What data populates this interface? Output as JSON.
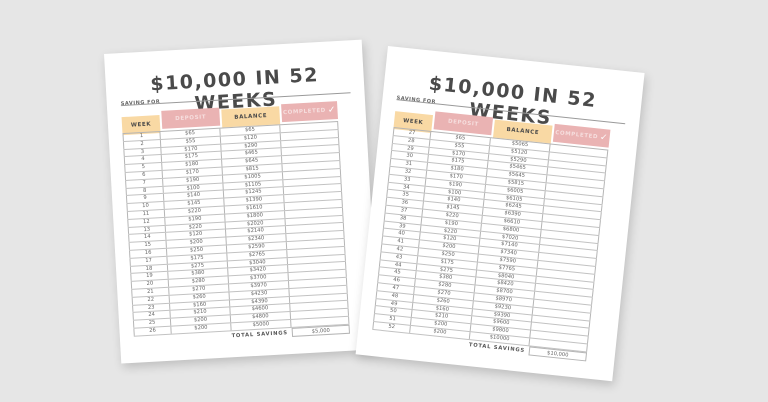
{
  "background_color": "#e6e6e6",
  "colors": {
    "peach": "#f9d9a4",
    "pink": "#eab3b3",
    "text": "#4a4a4a"
  },
  "pages": [
    {
      "title": "$10,000 IN 52 WEEKS",
      "saving_for_label": "SAVING FOR",
      "headers": {
        "week": "WEEK",
        "deposit": "DEPOSIT",
        "balance": "BALANCE",
        "completed": "COMPLETED",
        "check_icon": "✓"
      },
      "rows": [
        {
          "week": "1",
          "deposit": "$65",
          "balance": "$65"
        },
        {
          "week": "2",
          "deposit": "$55",
          "balance": "$120"
        },
        {
          "week": "3",
          "deposit": "$170",
          "balance": "$290"
        },
        {
          "week": "4",
          "deposit": "$175",
          "balance": "$465"
        },
        {
          "week": "5",
          "deposit": "$180",
          "balance": "$645"
        },
        {
          "week": "6",
          "deposit": "$170",
          "balance": "$815"
        },
        {
          "week": "7",
          "deposit": "$190",
          "balance": "$1005"
        },
        {
          "week": "8",
          "deposit": "$100",
          "balance": "$1105"
        },
        {
          "week": "9",
          "deposit": "$140",
          "balance": "$1245"
        },
        {
          "week": "10",
          "deposit": "$145",
          "balance": "$1390"
        },
        {
          "week": "11",
          "deposit": "$220",
          "balance": "$1610"
        },
        {
          "week": "12",
          "deposit": "$190",
          "balance": "$1800"
        },
        {
          "week": "13",
          "deposit": "$220",
          "balance": "$2020"
        },
        {
          "week": "14",
          "deposit": "$120",
          "balance": "$2140"
        },
        {
          "week": "15",
          "deposit": "$200",
          "balance": "$2340"
        },
        {
          "week": "16",
          "deposit": "$250",
          "balance": "$2590"
        },
        {
          "week": "17",
          "deposit": "$175",
          "balance": "$2765"
        },
        {
          "week": "18",
          "deposit": "$275",
          "balance": "$3040"
        },
        {
          "week": "19",
          "deposit": "$380",
          "balance": "$3420"
        },
        {
          "week": "20",
          "deposit": "$280",
          "balance": "$3700"
        },
        {
          "week": "21",
          "deposit": "$270",
          "balance": "$3970"
        },
        {
          "week": "22",
          "deposit": "$260",
          "balance": "$4230"
        },
        {
          "week": "23",
          "deposit": "$160",
          "balance": "$4390"
        },
        {
          "week": "24",
          "deposit": "$210",
          "balance": "$4600"
        },
        {
          "week": "25",
          "deposit": "$200",
          "balance": "$4800"
        },
        {
          "week": "26",
          "deposit": "$200",
          "balance": "$5000"
        }
      ],
      "total_label": "TOTAL SAVINGS",
      "total_value": "$5,000"
    },
    {
      "title": "$10,000 IN 52 WEEKS",
      "saving_for_label": "SAVING FOR",
      "headers": {
        "week": "WEEK",
        "deposit": "DEPOSIT",
        "balance": "BALANCE",
        "completed": "COMPLETED",
        "check_icon": "✓"
      },
      "rows": [
        {
          "week": "27",
          "deposit": "$65",
          "balance": "$5065"
        },
        {
          "week": "28",
          "deposit": "$55",
          "balance": "$5120"
        },
        {
          "week": "29",
          "deposit": "$170",
          "balance": "$5290"
        },
        {
          "week": "30",
          "deposit": "$175",
          "balance": "$5465"
        },
        {
          "week": "31",
          "deposit": "$180",
          "balance": "$5645"
        },
        {
          "week": "32",
          "deposit": "$170",
          "balance": "$5815"
        },
        {
          "week": "33",
          "deposit": "$190",
          "balance": "$6005"
        },
        {
          "week": "34",
          "deposit": "$100",
          "balance": "$6105"
        },
        {
          "week": "35",
          "deposit": "$140",
          "balance": "$6245"
        },
        {
          "week": "36",
          "deposit": "$145",
          "balance": "$6390"
        },
        {
          "week": "37",
          "deposit": "$220",
          "balance": "$6610"
        },
        {
          "week": "38",
          "deposit": "$190",
          "balance": "$6800"
        },
        {
          "week": "39",
          "deposit": "$220",
          "balance": "$7020"
        },
        {
          "week": "40",
          "deposit": "$120",
          "balance": "$7140"
        },
        {
          "week": "41",
          "deposit": "$200",
          "balance": "$7340"
        },
        {
          "week": "42",
          "deposit": "$250",
          "balance": "$7590"
        },
        {
          "week": "43",
          "deposit": "$175",
          "balance": "$7765"
        },
        {
          "week": "44",
          "deposit": "$275",
          "balance": "$8040"
        },
        {
          "week": "45",
          "deposit": "$380",
          "balance": "$8420"
        },
        {
          "week": "46",
          "deposit": "$280",
          "balance": "$8700"
        },
        {
          "week": "47",
          "deposit": "$270",
          "balance": "$8970"
        },
        {
          "week": "48",
          "deposit": "$260",
          "balance": "$9230"
        },
        {
          "week": "49",
          "deposit": "$160",
          "balance": "$9390"
        },
        {
          "week": "50",
          "deposit": "$210",
          "balance": "$9600"
        },
        {
          "week": "51",
          "deposit": "$200",
          "balance": "$9800"
        },
        {
          "week": "52",
          "deposit": "$200",
          "balance": "$10000"
        }
      ],
      "total_label": "TOTAL SAVINGS",
      "total_value": "$10,000"
    }
  ]
}
